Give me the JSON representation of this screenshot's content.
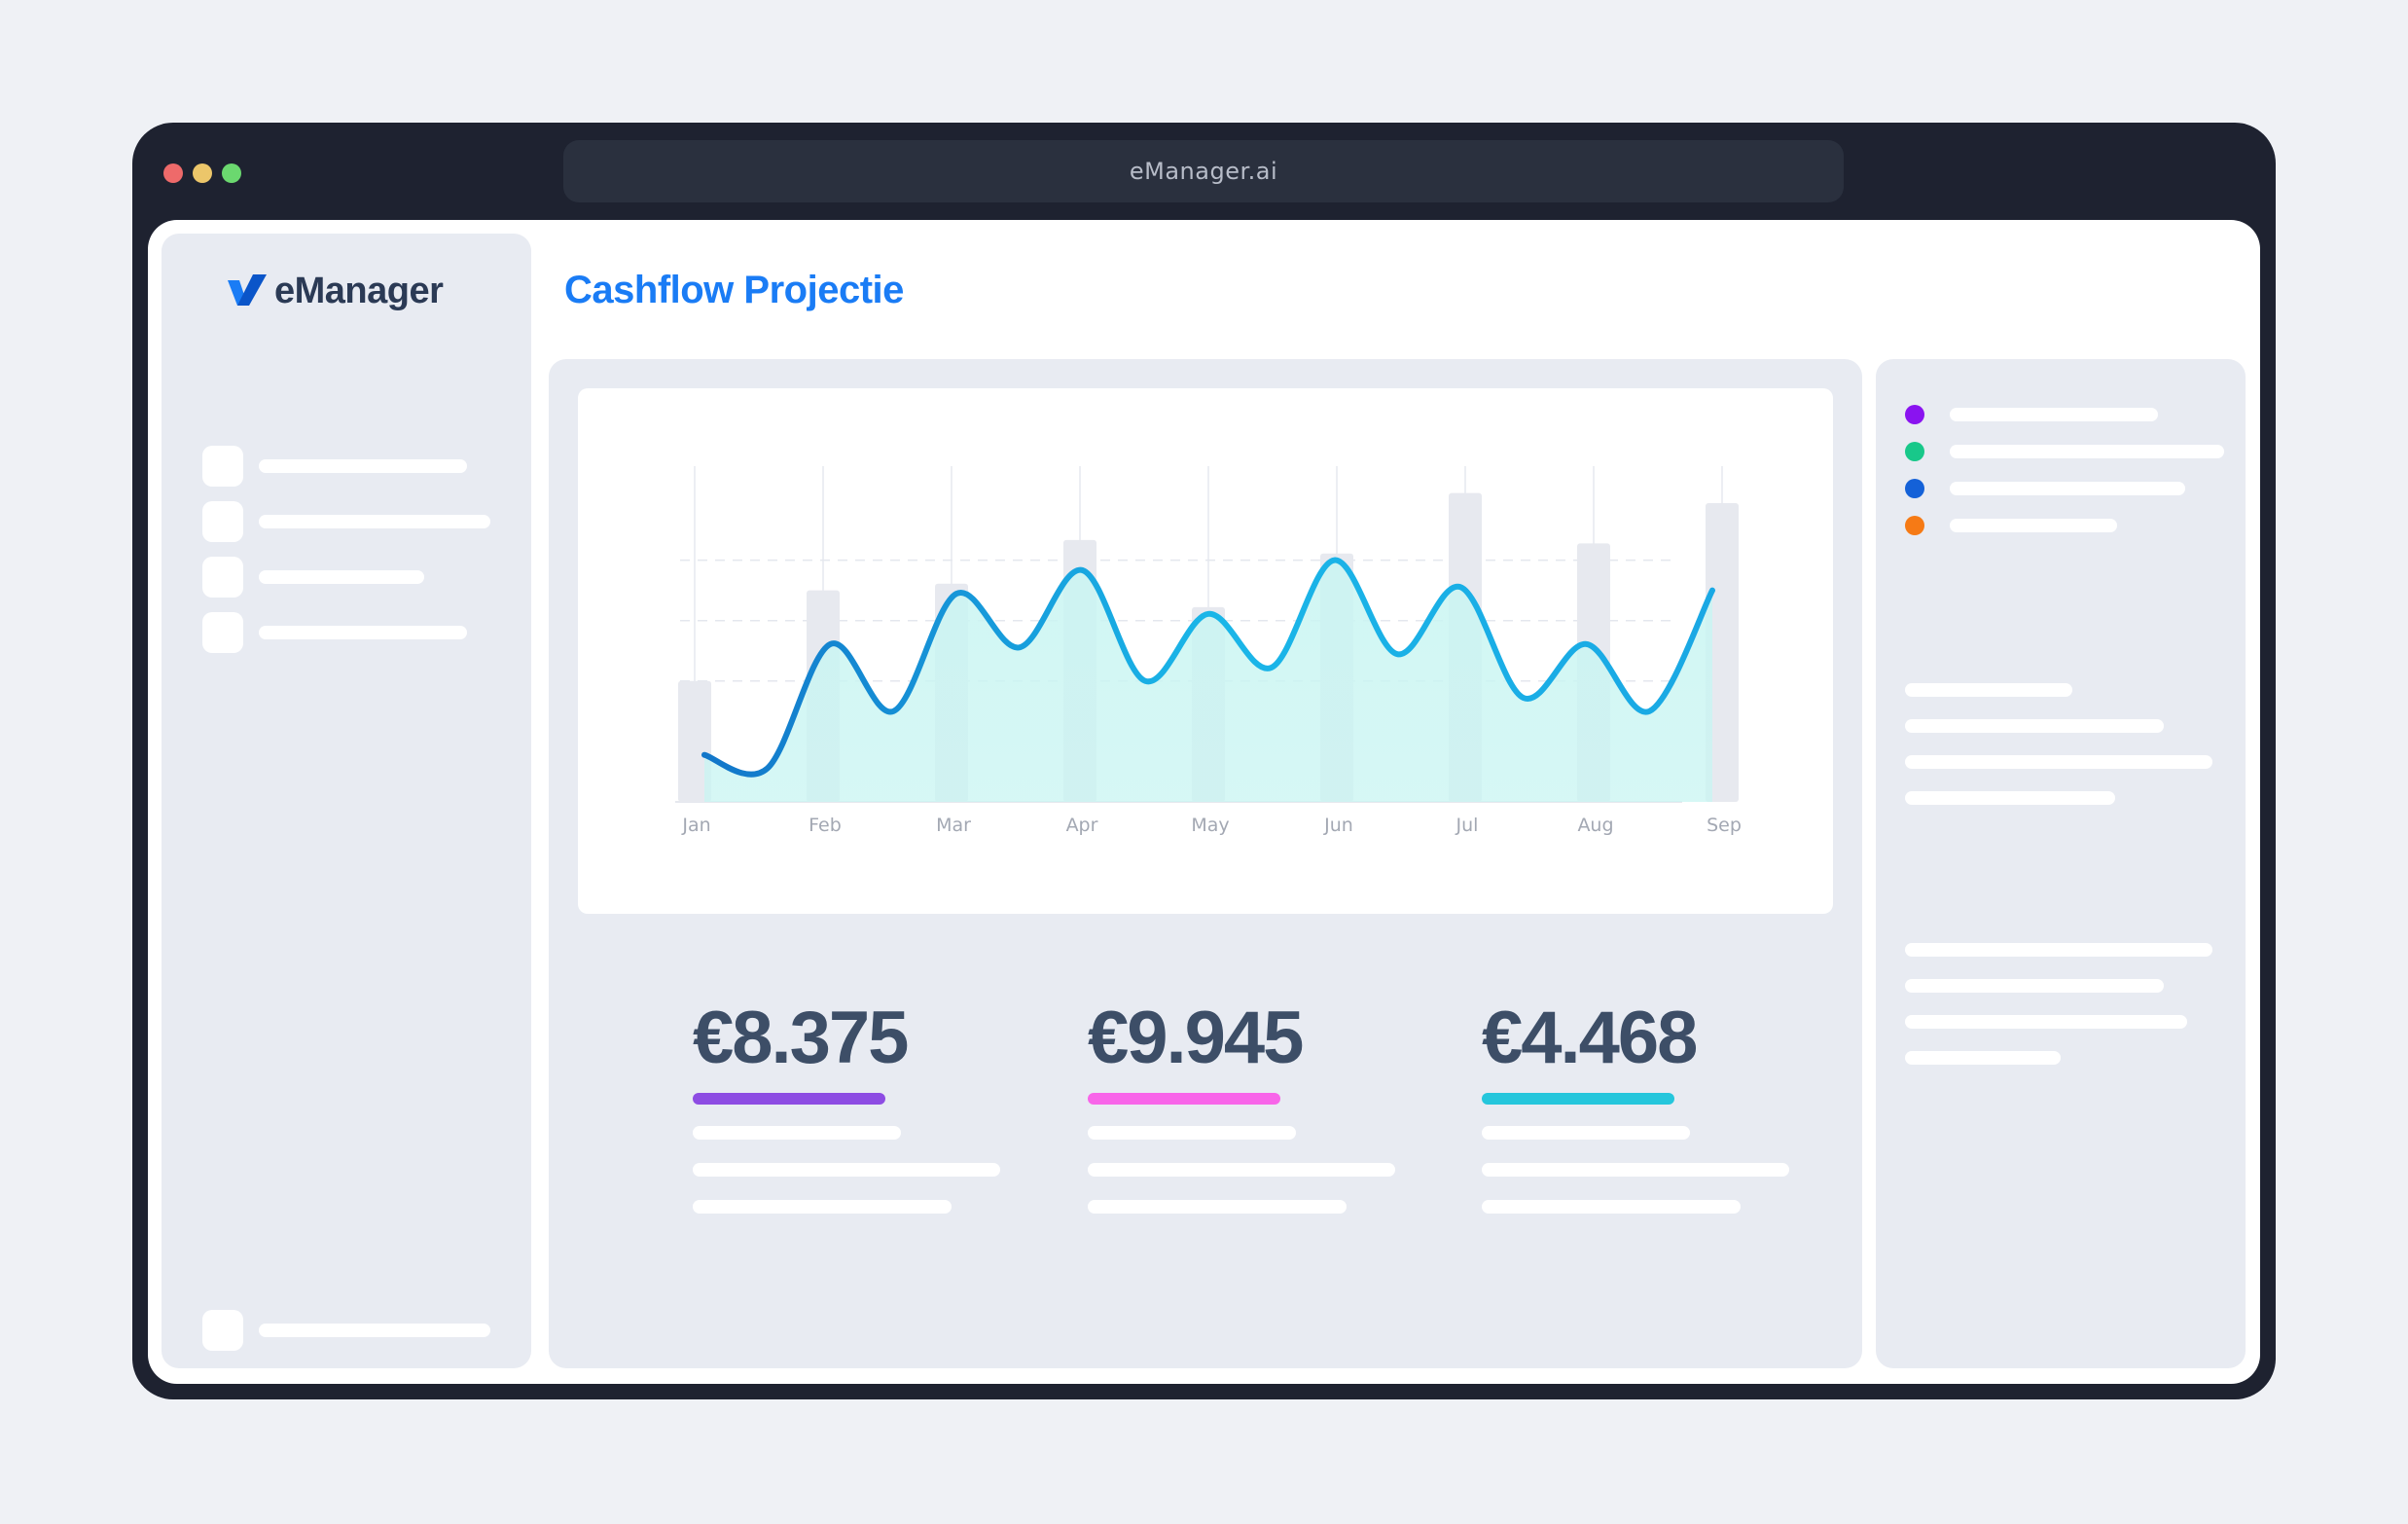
{
  "browser": {
    "url": "eManager.ai",
    "traffic_colors": [
      "#ee6a6a",
      "#ecc66a",
      "#6bd86f"
    ]
  },
  "logo": {
    "text": "eManager"
  },
  "page": {
    "title": "Cashflow Projectie"
  },
  "chart_data": {
    "type": "line",
    "categories": [
      "Jan",
      "Feb",
      "Mar",
      "Apr",
      "May",
      "Jun",
      "Jul",
      "Aug",
      "Sep"
    ],
    "bar_values": [
      36,
      63,
      65,
      78,
      58,
      74,
      92,
      77,
      89
    ],
    "series": [
      {
        "values": [
          14,
          47,
          62,
          69,
          56,
          72,
          64,
          47,
          63
        ]
      }
    ],
    "ylim": [
      0,
      100
    ],
    "grid": true,
    "line_color": "#1aa8e4",
    "area_color": "#c9f5f2"
  },
  "stats": [
    {
      "value": "€8.375",
      "color": "#8d4ce3"
    },
    {
      "value": "€9.945",
      "color": "#f865e9"
    },
    {
      "value": "€4.468",
      "color": "#25c6dc"
    }
  ],
  "legend": {
    "colors": [
      "#8a13f0",
      "#18c88a",
      "#1461d8",
      "#f67a15"
    ]
  }
}
